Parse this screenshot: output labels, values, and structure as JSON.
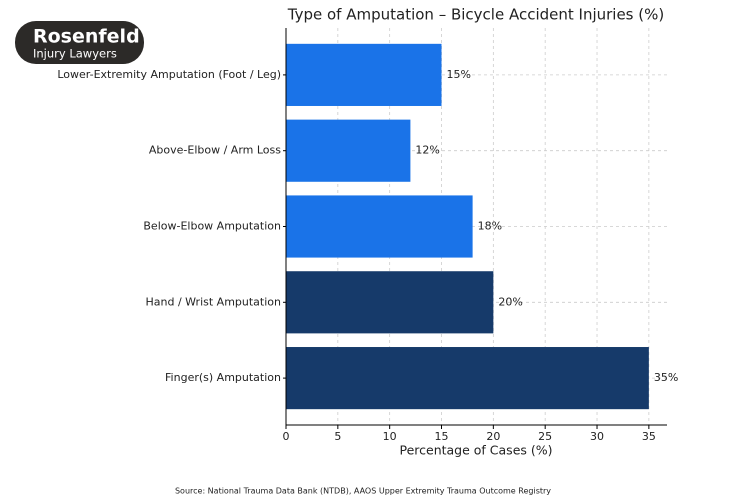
{
  "logo": {
    "name": "Rosenfeld",
    "tagline": "Injury Lawyers"
  },
  "chart_data": {
    "type": "hbar",
    "title": "Type of Amputation – Bicycle Accident Injuries (%)",
    "x_label": "Percentage of Cases (%)",
    "categories": [
      "Lower-Extremity Amputation (Foot / Leg)",
      "Above-Elbow / Arm Loss",
      "Below-Elbow Amputation",
      "Hand / Wrist Amputation",
      "Finger(s) Amputation"
    ],
    "values": [
      15,
      12,
      18,
      20,
      35
    ],
    "value_labels": [
      "15%",
      "12%",
      "18%",
      "20%",
      "35%"
    ],
    "colors": [
      "#1a73e8",
      "#1a73e8",
      "#1a73e8",
      "#163a6a",
      "#163a6a"
    ],
    "xlim": [
      0,
      36.75
    ],
    "xticks": [
      0,
      5,
      10,
      15,
      20,
      25,
      30,
      35
    ],
    "grid": true,
    "source": "Source: National Trauma Data Bank (NTDB), AAOS Upper Extremity Trauma Outcome Registry"
  }
}
